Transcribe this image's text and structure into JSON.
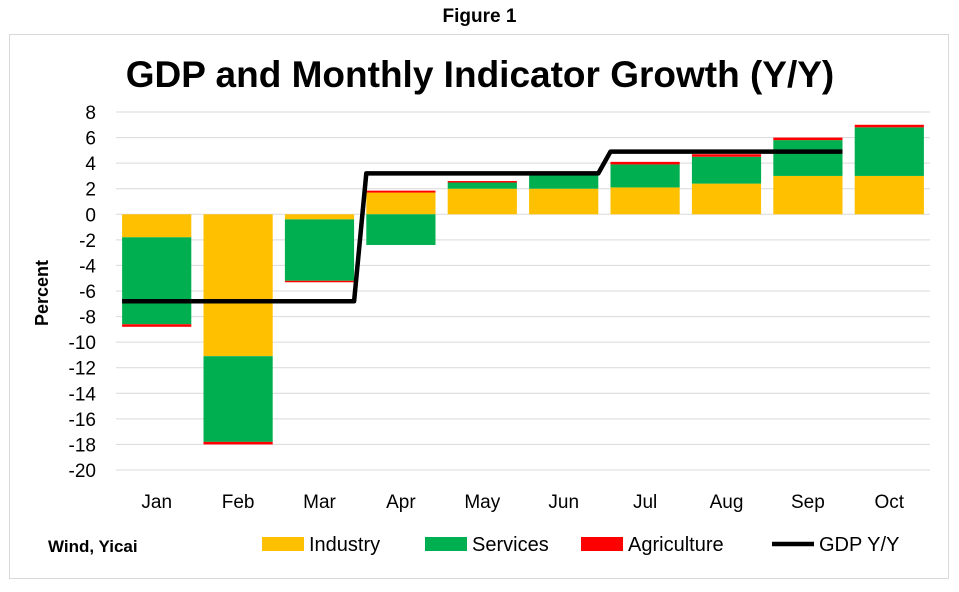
{
  "figure_label": "Figure 1",
  "source": "Wind, Yicai",
  "chart_data": {
    "type": "bar",
    "stacked": true,
    "title": "GDP and Monthly Indicator Growth (Y/Y)",
    "ylabel": "Percent",
    "xlabel": "",
    "ylim": [
      -20,
      8
    ],
    "yticks": [
      8,
      6,
      4,
      2,
      0,
      -2,
      -4,
      -6,
      -8,
      -10,
      -12,
      -14,
      -16,
      -18,
      -20
    ],
    "grid": true,
    "legend_position": "bottom",
    "categories": [
      "Jan",
      "Feb",
      "Mar",
      "Apr",
      "May",
      "Jun",
      "Jul",
      "Aug",
      "Sep",
      "Oct"
    ],
    "series": [
      {
        "name": "Industry",
        "kind": "bar",
        "color": "#FFC000",
        "values": [
          -1.8,
          -11.1,
          -0.4,
          1.7,
          2.0,
          2.0,
          2.1,
          2.4,
          3.0,
          3.0
        ]
      },
      {
        "name": "Services",
        "kind": "bar",
        "color": "#00B050",
        "values": [
          -6.8,
          -6.7,
          -4.8,
          -2.4,
          0.5,
          1.2,
          1.8,
          2.1,
          2.8,
          3.8
        ]
      },
      {
        "name": "Agriculture",
        "kind": "bar",
        "color": "#FF0000",
        "values": [
          -0.2,
          -0.2,
          -0.1,
          0.15,
          0.1,
          0.15,
          0.2,
          0.2,
          0.2,
          0.2
        ]
      },
      {
        "name": "GDP Y/Y",
        "kind": "line",
        "color": "#000000",
        "values": [
          -6.8,
          -6.8,
          -6.8,
          3.2,
          3.2,
          3.2,
          4.9,
          4.9,
          4.9,
          null
        ]
      }
    ]
  }
}
